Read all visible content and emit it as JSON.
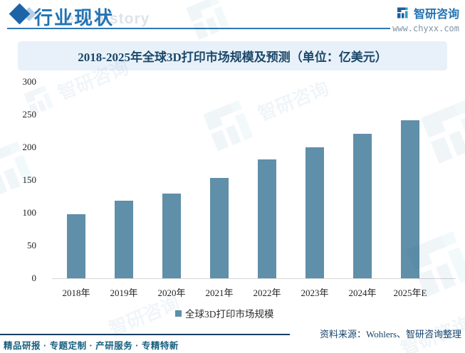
{
  "header": {
    "title": "行业现状",
    "watermark_text": "ent history",
    "logo_text": "智研咨询",
    "website": "www.chyxx.com"
  },
  "chart_data": {
    "type": "bar",
    "title": "2018-2025年全球3D打印市场规模及预测（单位：亿美元）",
    "categories": [
      "2018年",
      "2019年",
      "2020年",
      "2021年",
      "2022年",
      "2023年",
      "2024年",
      "2025年E"
    ],
    "values": [
      98,
      119,
      129,
      153,
      181,
      200,
      221,
      241
    ],
    "unit": "亿美元",
    "xlabel": "",
    "ylabel": "",
    "ylim": [
      0,
      300
    ],
    "yticks": [
      0,
      50,
      100,
      150,
      200,
      250,
      300
    ],
    "grid": false,
    "legend": [
      "全球3D打印市场规模"
    ],
    "legend_position": "bottom",
    "bar_color": "#5f8fa9"
  },
  "footer": {
    "tagline": "精品研报 · 专题定制 · 产研服务 · 专精特新",
    "source": "资料来源：Wohlers、智研咨询整理"
  },
  "colors": {
    "accent_blue": "#2273b3",
    "bar": "#5f8fa9",
    "banner_bg": "#e8f1fa",
    "banner_text": "#1b4768",
    "header_rule": "#2e77b5",
    "footer_rule": "#173d5f",
    "tagline_text": "#16607f",
    "source_text": "#16436b",
    "logo_dark": "#1c5f9b",
    "logo_teal": "#2f9fc0"
  }
}
